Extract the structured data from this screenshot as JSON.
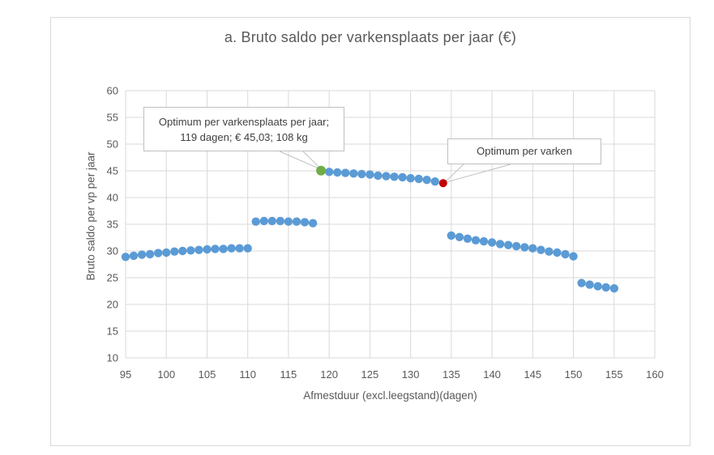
{
  "chart_data": {
    "type": "scatter",
    "title": "a. Bruto saldo per varkensplaats per jaar (€)",
    "xlabel": "Afmestduur (excl.leegstand)(dagen)",
    "ylabel": "Bruto saldo per vp per jaar",
    "xlim": [
      95,
      160
    ],
    "ylim": [
      10,
      60
    ],
    "xticks": [
      95,
      100,
      105,
      110,
      115,
      120,
      125,
      130,
      135,
      140,
      145,
      150,
      155,
      160
    ],
    "yticks": [
      10,
      15,
      20,
      25,
      30,
      35,
      40,
      45,
      50,
      55,
      60
    ],
    "grid": true,
    "legend_position": "none",
    "series": [
      {
        "name": "bruto-saldo",
        "color": "#5B9BD5",
        "marker_radius": 5.2,
        "points": [
          [
            95,
            28.9
          ],
          [
            96,
            29.1
          ],
          [
            97,
            29.3
          ],
          [
            98,
            29.4
          ],
          [
            99,
            29.6
          ],
          [
            100,
            29.7
          ],
          [
            101,
            29.9
          ],
          [
            102,
            30.0
          ],
          [
            103,
            30.1
          ],
          [
            104,
            30.2
          ],
          [
            105,
            30.3
          ],
          [
            106,
            30.4
          ],
          [
            107,
            30.4
          ],
          [
            108,
            30.5
          ],
          [
            109,
            30.5
          ],
          [
            110,
            30.5
          ],
          [
            111,
            35.5
          ],
          [
            112,
            35.6
          ],
          [
            113,
            35.6
          ],
          [
            114,
            35.6
          ],
          [
            115,
            35.5
          ],
          [
            116,
            35.5
          ],
          [
            117,
            35.4
          ],
          [
            118,
            35.2
          ],
          [
            120,
            44.8
          ],
          [
            121,
            44.7
          ],
          [
            122,
            44.6
          ],
          [
            123,
            44.5
          ],
          [
            124,
            44.4
          ],
          [
            125,
            44.3
          ],
          [
            126,
            44.1
          ],
          [
            127,
            44.0
          ],
          [
            128,
            43.9
          ],
          [
            129,
            43.8
          ],
          [
            130,
            43.6
          ],
          [
            131,
            43.5
          ],
          [
            132,
            43.3
          ],
          [
            133,
            43.0
          ],
          [
            135,
            32.9
          ],
          [
            136,
            32.6
          ],
          [
            137,
            32.3
          ],
          [
            138,
            32.0
          ],
          [
            139,
            31.8
          ],
          [
            140,
            31.6
          ],
          [
            141,
            31.3
          ],
          [
            142,
            31.1
          ],
          [
            143,
            30.9
          ],
          [
            144,
            30.7
          ],
          [
            145,
            30.5
          ],
          [
            146,
            30.2
          ],
          [
            147,
            29.9
          ],
          [
            148,
            29.7
          ],
          [
            149,
            29.4
          ],
          [
            150,
            29.0
          ],
          [
            151,
            24.0
          ],
          [
            152,
            23.7
          ],
          [
            153,
            23.4
          ],
          [
            154,
            23.2
          ],
          [
            155,
            23.0
          ]
        ]
      },
      {
        "name": "optimum-per-varkensplaats",
        "color": "#70AD47",
        "marker_radius": 6,
        "points": [
          [
            119,
            45.03
          ]
        ]
      },
      {
        "name": "optimum-per-varken",
        "color": "#C00000",
        "marker_radius": 5,
        "points": [
          [
            134,
            42.7
          ]
        ]
      }
    ],
    "annotations": [
      {
        "text": "Optimum per varkensplaats per jaar; 119 dagen; € 45,03; 108 kg",
        "target_xy": [
          119,
          45.03
        ]
      },
      {
        "text": "Optimum per varken",
        "target_xy": [
          134,
          42.7
        ]
      }
    ]
  },
  "colors": {
    "accent_blue": "#5B9BD5",
    "accent_green": "#70AD47",
    "accent_red": "#C00000",
    "grid": "#D9D9D9",
    "axis_text": "#595959",
    "title_text": "#595959",
    "annotation_border": "#BFBFBF",
    "leader_line": "#BFBFBF",
    "frame_border": "#D9D9D9"
  }
}
